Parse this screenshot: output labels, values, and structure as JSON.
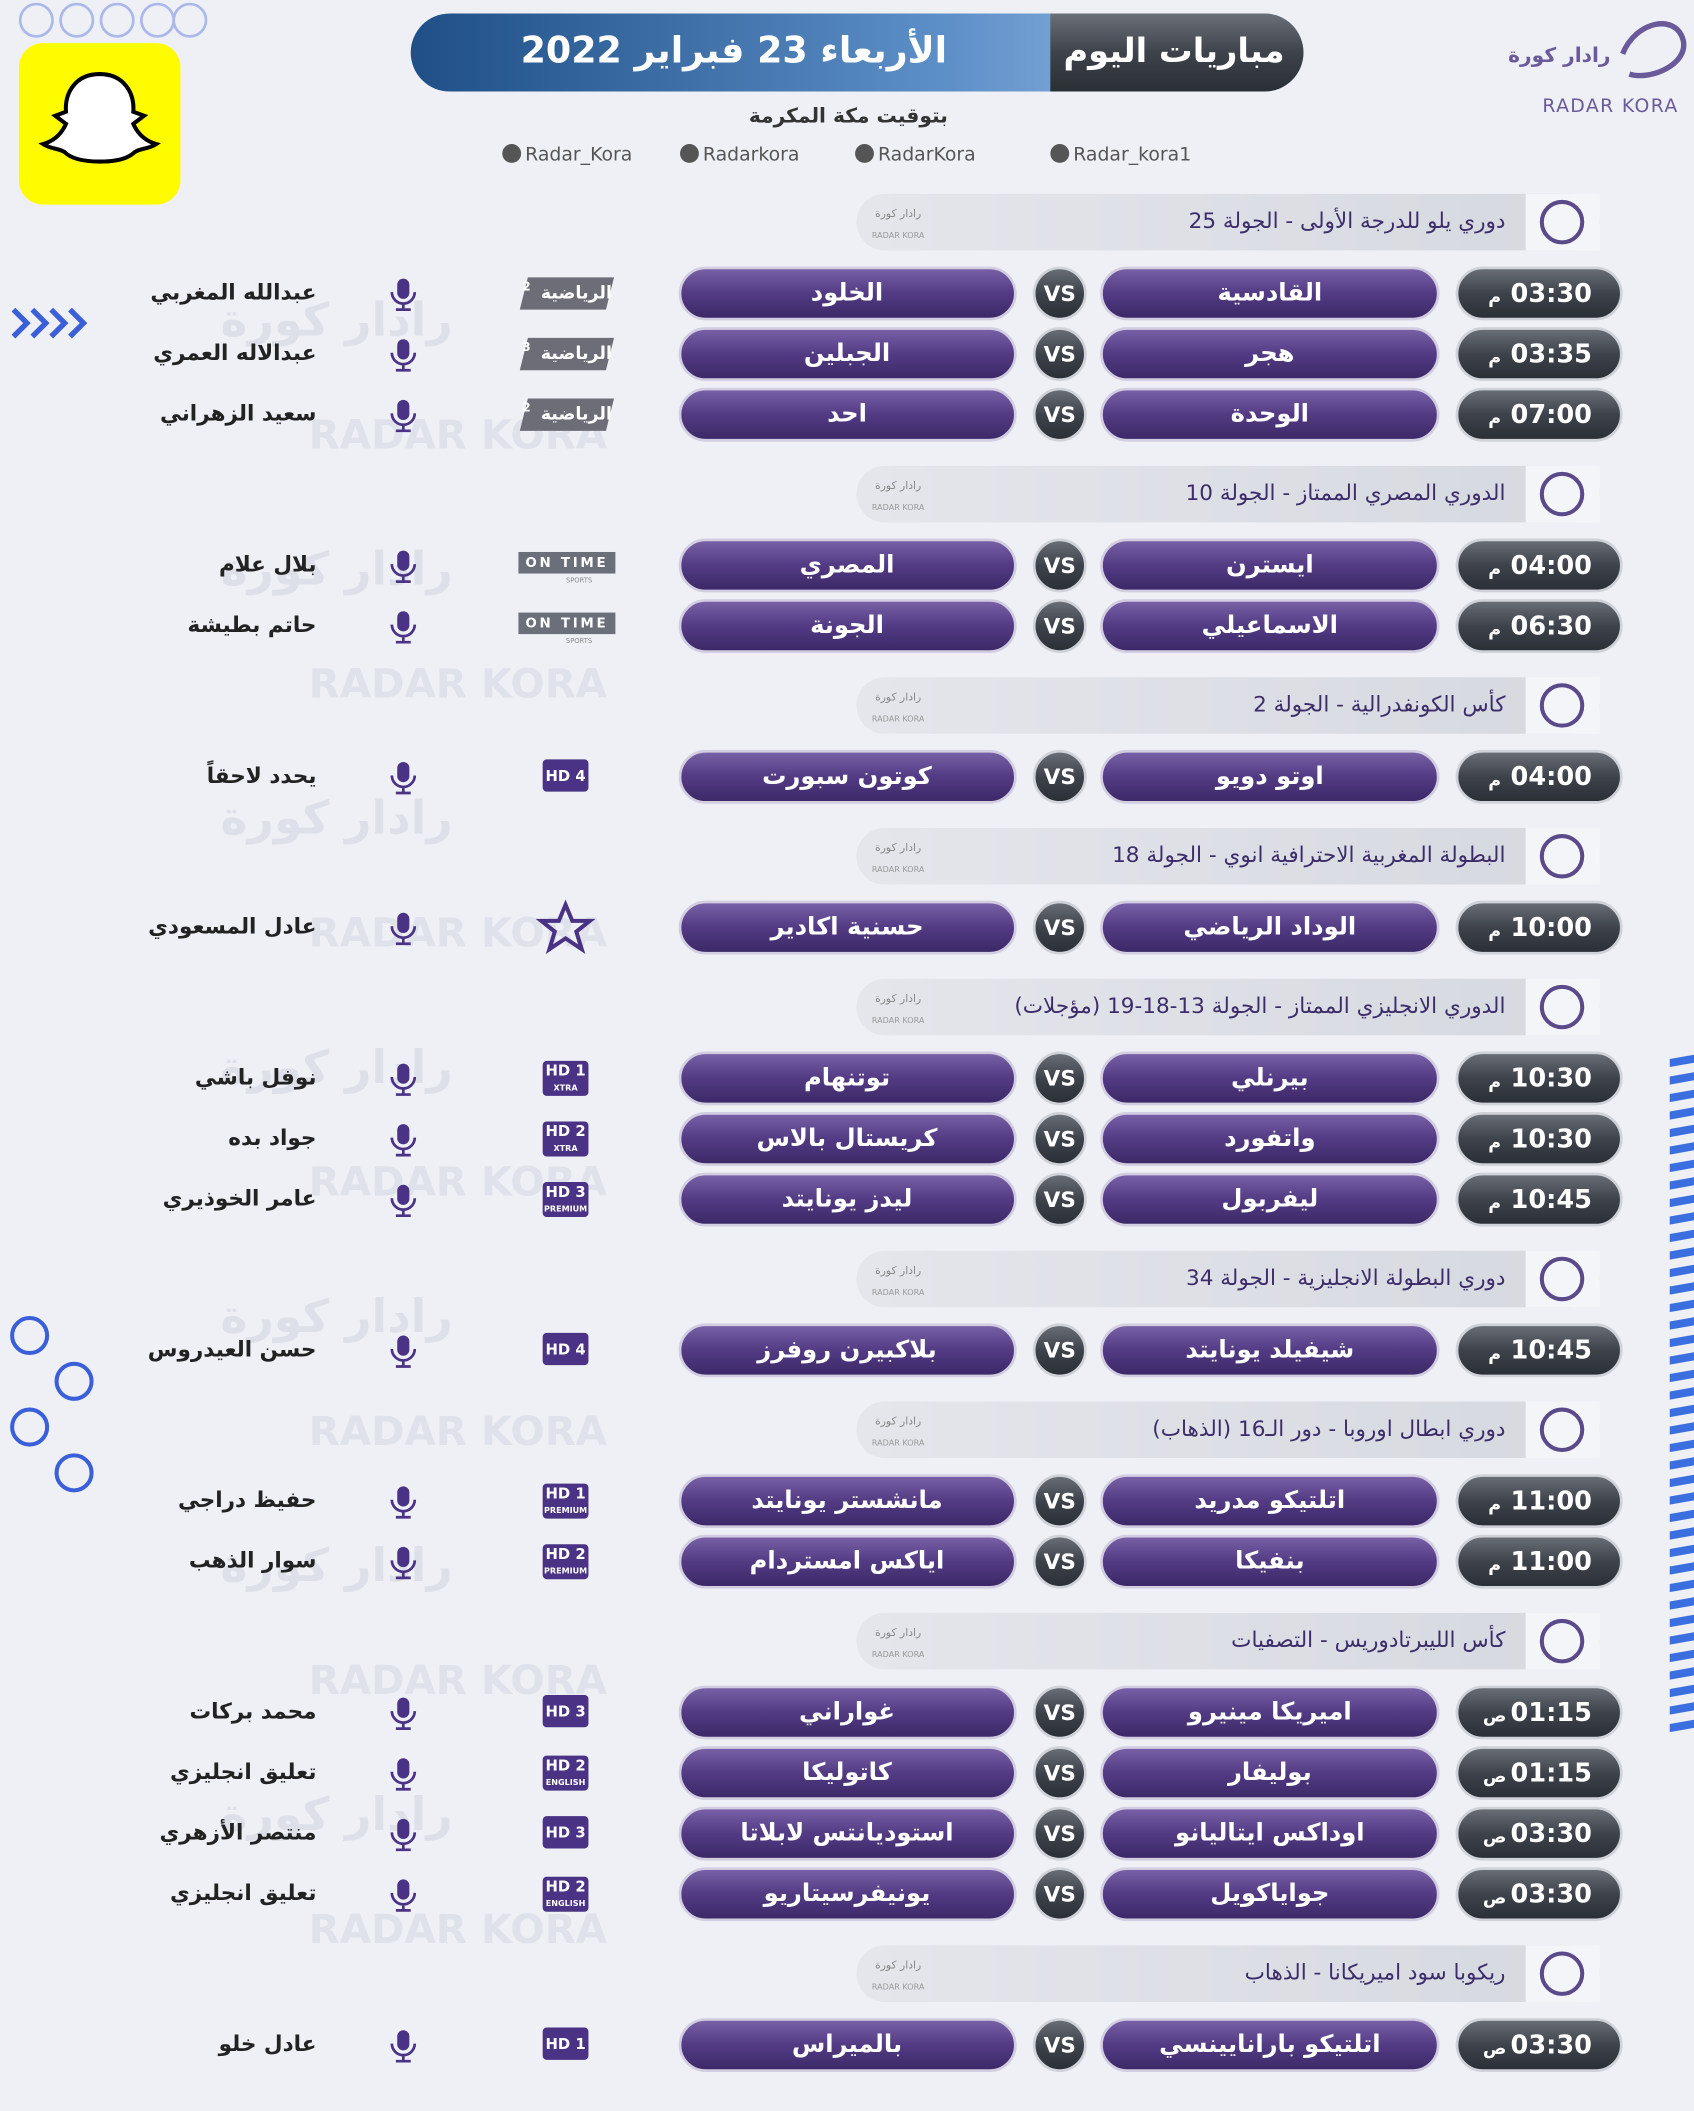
{
  "header": {
    "title": "مباريات اليوم",
    "date": "الأربعاء 23 فبراير 2022",
    "subtitle": "بتوقيت مكة المكرمة",
    "logo_ar": "رادار كورة",
    "logo_en": "RADAR KORA",
    "socials": [
      "Radar_kora1",
      "RadarKora",
      "Radarkora",
      "Radar_Kora"
    ]
  },
  "vs_label": "VS",
  "leagues": [
    {
      "name": "دوري يلو للدرجة الأولى - الجولة 25",
      "matches": [
        {
          "time": "03:30",
          "period": "م",
          "home": "القادسية",
          "away": "الخلود",
          "channel": {
            "kind": "ksa",
            "name": "الرياضية",
            "sub": "2"
          },
          "commentator": "عبدالله المغربي"
        },
        {
          "time": "03:35",
          "period": "م",
          "home": "هجر",
          "away": "الجبلين",
          "channel": {
            "kind": "ksa",
            "name": "الرياضية",
            "sub": "3"
          },
          "commentator": "عبدالاله العمري"
        },
        {
          "time": "07:00",
          "period": "م",
          "home": "الوحدة",
          "away": "احد",
          "channel": {
            "kind": "ksa",
            "name": "الرياضية",
            "sub": "2"
          },
          "commentator": "سعيد الزهراني"
        }
      ]
    },
    {
      "name": "الدوري المصري الممتاز - الجولة 10",
      "matches": [
        {
          "time": "04:00",
          "period": "م",
          "home": "ايسترن",
          "away": "المصري",
          "channel": {
            "kind": "ontime",
            "name": "ON TIME",
            "sub": "SPORTS"
          },
          "commentator": "بلال علام"
        },
        {
          "time": "06:30",
          "period": "م",
          "home": "الاسماعيلي",
          "away": "الجونة",
          "channel": {
            "kind": "ontime",
            "name": "ON TIME",
            "sub": "SPORTS"
          },
          "commentator": "حاتم بطيشة"
        }
      ]
    },
    {
      "name": "كأس الكونفدرالية - الجولة 2",
      "matches": [
        {
          "time": "04:00",
          "period": "م",
          "home": "اوتو دويو",
          "away": "كوتون سبورت",
          "channel": {
            "kind": "hd",
            "name": "HD 4"
          },
          "commentator": "يحدد لاحقاً"
        }
      ]
    },
    {
      "name": "البطولة المغربية الاحترافية انوي - الجولة 18",
      "matches": [
        {
          "time": "10:00",
          "period": "م",
          "home": "الوداد الرياضي",
          "away": "حسنية اكادير",
          "channel": {
            "kind": "star"
          },
          "commentator": "عادل المسعودي"
        }
      ]
    },
    {
      "name": "الدوري الانجليزي الممتاز - الجولة 13-18-19 (مؤجلات)",
      "matches": [
        {
          "time": "10:30",
          "period": "م",
          "home": "بيرنلي",
          "away": "توتنهام",
          "channel": {
            "kind": "hd",
            "name": "HD 1",
            "sub": "XTRA"
          },
          "commentator": "نوفل باشي"
        },
        {
          "time": "10:30",
          "period": "م",
          "home": "واتفورد",
          "away": "كريستال بالاس",
          "channel": {
            "kind": "hd",
            "name": "HD 2",
            "sub": "XTRA"
          },
          "commentator": "جواد بده"
        },
        {
          "time": "10:45",
          "period": "م",
          "home": "ليفربول",
          "away": "ليدز يونايتد",
          "channel": {
            "kind": "hd",
            "name": "HD 3",
            "sub": "PREMIUM"
          },
          "commentator": "عامر الخوذيري"
        }
      ]
    },
    {
      "name": "دوري البطولة الانجليزية - الجولة 34",
      "matches": [
        {
          "time": "10:45",
          "period": "م",
          "home": "شيفيلد يونايتد",
          "away": "بلاكبيرن روفرز",
          "channel": {
            "kind": "hd",
            "name": "HD 4"
          },
          "commentator": "حسن العيدروس"
        }
      ]
    },
    {
      "name": "دوري ابطال اوروبا - دور الـ16 (الذهاب)",
      "matches": [
        {
          "time": "11:00",
          "period": "م",
          "home": "اتلتيكو مدريد",
          "away": "مانشستر يونايتد",
          "channel": {
            "kind": "hd",
            "name": "HD 1",
            "sub": "PREMIUM"
          },
          "commentator": "حفيظ دراجي"
        },
        {
          "time": "11:00",
          "period": "م",
          "home": "بنفيكا",
          "away": "اياكس امستردام",
          "channel": {
            "kind": "hd",
            "name": "HD 2",
            "sub": "PREMIUM"
          },
          "commentator": "سوار الذهب"
        }
      ]
    },
    {
      "name": "كأس الليبرتادوريس - التصفيات",
      "matches": [
        {
          "time": "01:15",
          "period": "ص",
          "home": "اميريكا مينيرو",
          "away": "غواراني",
          "channel": {
            "kind": "hd",
            "name": "HD 3"
          },
          "commentator": "محمد بركات"
        },
        {
          "time": "01:15",
          "period": "ص",
          "home": "بوليفار",
          "away": "كاتوليكا",
          "channel": {
            "kind": "hd",
            "name": "HD 2",
            "sub": "ENGLISH"
          },
          "commentator": "تعليق انجليزي"
        },
        {
          "time": "03:30",
          "period": "ص",
          "home": "اوداكس ايتاليانو",
          "away": "استوديانتس لابلاتا",
          "channel": {
            "kind": "hd",
            "name": "HD 3"
          },
          "commentator": "منتصر الأزهري"
        },
        {
          "time": "03:30",
          "period": "ص",
          "home": "جواياكويل",
          "away": "يونيفرسيتاريو",
          "channel": {
            "kind": "hd",
            "name": "HD 2",
            "sub": "ENGLISH"
          },
          "commentator": "تعليق انجليزي"
        }
      ]
    },
    {
      "name": "ريكوبا سود اميريكانا - الذهاب",
      "matches": [
        {
          "time": "03:30",
          "period": "ص",
          "home": "اتلتيكو بارانايينسي",
          "away": "بالميراس",
          "channel": {
            "kind": "hd",
            "name": "HD 1"
          },
          "commentator": "عادل خلو"
        }
      ]
    }
  ]
}
